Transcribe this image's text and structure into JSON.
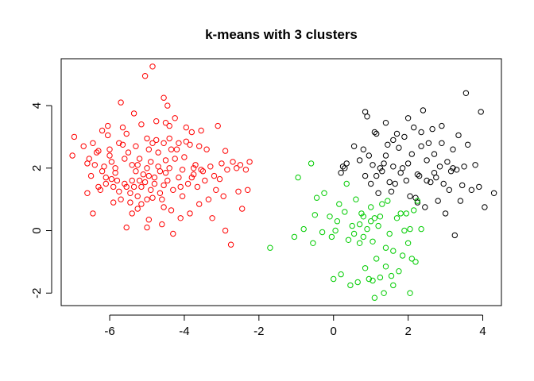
{
  "chart_data": {
    "type": "scatter",
    "title": "k-means with 3 clusters",
    "xlabel": "",
    "ylabel": "",
    "xlim": [
      -7.3,
      4.5
    ],
    "ylim": [
      -2.4,
      5.5
    ],
    "xticks": [
      -6,
      -4,
      -2,
      0,
      2,
      4
    ],
    "yticks": [
      -2,
      0,
      2,
      4
    ],
    "grid": false,
    "legend": "none",
    "marker": "open-circle",
    "series": [
      {
        "color": "#ff0000",
        "points": [
          [
            -7.0,
            2.4
          ],
          [
            -6.95,
            3.0
          ],
          [
            -6.7,
            2.7
          ],
          [
            -6.6,
            1.2
          ],
          [
            -6.55,
            2.3
          ],
          [
            -6.5,
            1.75
          ],
          [
            -6.45,
            0.55
          ],
          [
            -6.45,
            2.8
          ],
          [
            -6.35,
            2.5
          ],
          [
            -6.3,
            1.4
          ],
          [
            -6.25,
            1.3
          ],
          [
            -6.2,
            3.2
          ],
          [
            -6.2,
            1.9
          ],
          [
            -6.15,
            2.05
          ],
          [
            -6.1,
            1.7
          ],
          [
            -6.1,
            1.5
          ],
          [
            -6.05,
            3.05
          ],
          [
            -6.0,
            2.6
          ],
          [
            -6.0,
            2.4
          ],
          [
            -5.95,
            2.2
          ],
          [
            -5.9,
            1.4
          ],
          [
            -5.9,
            0.9
          ],
          [
            -5.85,
            2.0
          ],
          [
            -5.8,
            1.6
          ],
          [
            -5.75,
            2.8
          ],
          [
            -5.75,
            1.25
          ],
          [
            -5.7,
            4.1
          ],
          [
            -5.7,
            1.0
          ],
          [
            -5.65,
            3.3
          ],
          [
            -5.6,
            2.3
          ],
          [
            -5.6,
            1.5
          ],
          [
            -5.55,
            1.4
          ],
          [
            -5.5,
            2.5
          ],
          [
            -5.45,
            0.9
          ],
          [
            -5.4,
            2.1
          ],
          [
            -5.4,
            1.6
          ],
          [
            -5.35,
            1.4
          ],
          [
            -5.3,
            2.7
          ],
          [
            -5.3,
            1.9
          ],
          [
            -5.25,
            1.1
          ],
          [
            -5.25,
            0.7
          ],
          [
            -5.2,
            1.6
          ],
          [
            -5.2,
            2.3
          ],
          [
            -5.15,
            1.4
          ],
          [
            -5.15,
            0.85
          ],
          [
            -5.1,
            1.8
          ],
          [
            -5.05,
            4.95
          ],
          [
            -5.05,
            1.55
          ],
          [
            -5.0,
            2.95
          ],
          [
            -5.0,
            2.0
          ],
          [
            -5.0,
            0.1
          ],
          [
            -5.0,
            1.0
          ],
          [
            -4.95,
            0.35
          ],
          [
            -4.95,
            1.75
          ],
          [
            -4.9,
            2.2
          ],
          [
            -4.9,
            1.3
          ],
          [
            -4.85,
            2.8
          ],
          [
            -4.8,
            1.7
          ],
          [
            -4.8,
            1.5
          ],
          [
            -4.75,
            3.5
          ],
          [
            -4.75,
            2.9
          ],
          [
            -4.7,
            2.5
          ],
          [
            -4.7,
            2.05
          ],
          [
            -4.65,
            1.9
          ],
          [
            -4.6,
            0.2
          ],
          [
            -4.6,
            1.0
          ],
          [
            -4.55,
            2.8
          ],
          [
            -4.55,
            1.45
          ],
          [
            -4.5,
            3.45
          ],
          [
            -4.5,
            2.25
          ],
          [
            -4.5,
            1.85
          ],
          [
            -4.45,
            1.6
          ],
          [
            -4.4,
            3.35
          ],
          [
            -4.4,
            2.95
          ],
          [
            -4.4,
            2.0
          ],
          [
            -4.35,
            0.65
          ],
          [
            -4.3,
            1.3
          ],
          [
            -4.3,
            -0.1
          ],
          [
            -4.25,
            3.6
          ],
          [
            -4.2,
            2.6
          ],
          [
            -4.15,
            1.7
          ],
          [
            -4.1,
            0.4
          ],
          [
            -4.05,
            1.95
          ],
          [
            -4.0,
            2.35
          ],
          [
            -3.95,
            2.85
          ],
          [
            -3.9,
            1.5
          ],
          [
            -3.85,
            2.75
          ],
          [
            -3.85,
            0.55
          ],
          [
            -3.8,
            1.7
          ],
          [
            -3.8,
            3.15
          ],
          [
            -3.75,
            1.8
          ],
          [
            -3.7,
            2.1
          ],
          [
            -3.65,
            1.4
          ],
          [
            -3.6,
            0.85
          ],
          [
            -3.6,
            2.7
          ],
          [
            -3.55,
            3.2
          ],
          [
            -3.5,
            1.9
          ],
          [
            -3.45,
            1.6
          ],
          [
            -3.4,
            2.6
          ],
          [
            -3.35,
            1.0
          ],
          [
            -3.3,
            2.05
          ],
          [
            -3.25,
            0.4
          ],
          [
            -3.2,
            1.75
          ],
          [
            -3.15,
            1.3
          ],
          [
            -3.1,
            3.35
          ],
          [
            -3.05,
            1.65
          ],
          [
            -3.0,
            2.15
          ],
          [
            -2.95,
            1.1
          ],
          [
            -2.9,
            2.55
          ],
          [
            -2.9,
            0.0
          ],
          [
            -2.85,
            1.95
          ],
          [
            -2.75,
            -0.45
          ],
          [
            -2.7,
            2.2
          ],
          [
            -2.6,
            2.0
          ],
          [
            -2.55,
            1.25
          ],
          [
            -2.5,
            2.1
          ],
          [
            -2.45,
            0.7
          ],
          [
            -2.35,
            1.95
          ],
          [
            -2.3,
            1.3
          ],
          [
            -2.25,
            2.2
          ],
          [
            -4.85,
            5.25
          ],
          [
            -4.55,
            4.25
          ],
          [
            -4.45,
            4.0
          ],
          [
            -5.15,
            3.4
          ],
          [
            -5.35,
            3.75
          ],
          [
            -6.6,
            2.15
          ],
          [
            -6.05,
            3.35
          ],
          [
            -5.55,
            3.1
          ],
          [
            -4.25,
            2.3
          ],
          [
            -4.95,
            2.6
          ],
          [
            -5.65,
            2.75
          ],
          [
            -6.3,
            2.55
          ],
          [
            -5.85,
            1.85
          ],
          [
            -5.45,
            1.2
          ],
          [
            -4.65,
            1.2
          ],
          [
            -4.05,
            1.1
          ],
          [
            -3.75,
            2.0
          ],
          [
            -4.35,
            2.6
          ],
          [
            -5.95,
            1.65
          ],
          [
            -5.25,
            2.1
          ],
          [
            -6.4,
            2.1
          ],
          [
            -4.15,
            2.8
          ],
          [
            -4.55,
            0.75
          ],
          [
            -3.95,
            3.3
          ],
          [
            -5.4,
            0.55
          ],
          [
            -5.55,
            0.1
          ],
          [
            -4.85,
            1.05
          ],
          [
            -4.1,
            1.4
          ],
          [
            -3.55,
            1.95
          ]
        ]
      },
      {
        "color": "#000000",
        "points": [
          [
            0.2,
            1.85
          ],
          [
            0.25,
            2.05
          ],
          [
            0.3,
            2.0
          ],
          [
            0.35,
            2.15
          ],
          [
            0.55,
            2.7
          ],
          [
            0.7,
            2.25
          ],
          [
            0.8,
            2.6
          ],
          [
            0.85,
            1.75
          ],
          [
            0.85,
            3.8
          ],
          [
            0.9,
            3.65
          ],
          [
            0.95,
            2.4
          ],
          [
            1.0,
            1.5
          ],
          [
            1.05,
            2.1
          ],
          [
            1.1,
            3.15
          ],
          [
            1.15,
            3.1
          ],
          [
            1.2,
            1.2
          ],
          [
            1.25,
            2.0
          ],
          [
            1.3,
            1.9
          ],
          [
            1.35,
            2.15
          ],
          [
            1.4,
            3.45
          ],
          [
            1.45,
            2.75
          ],
          [
            1.5,
            1.55
          ],
          [
            1.55,
            1.25
          ],
          [
            1.6,
            2.05
          ],
          [
            1.65,
            1.5
          ],
          [
            1.7,
            3.1
          ],
          [
            1.75,
            2.65
          ],
          [
            1.8,
            1.85
          ],
          [
            1.85,
            2.0
          ],
          [
            1.9,
            3.0
          ],
          [
            1.95,
            1.6
          ],
          [
            2.0,
            2.15
          ],
          [
            2.05,
            1.1
          ],
          [
            2.1,
            2.45
          ],
          [
            2.15,
            3.3
          ],
          [
            2.2,
            1.05
          ],
          [
            2.25,
            0.9
          ],
          [
            2.3,
            1.75
          ],
          [
            2.35,
            3.15
          ],
          [
            2.35,
            2.7
          ],
          [
            2.4,
            3.85
          ],
          [
            2.45,
            0.75
          ],
          [
            2.5,
            1.6
          ],
          [
            2.5,
            2.25
          ],
          [
            2.55,
            2.8
          ],
          [
            2.6,
            1.55
          ],
          [
            2.65,
            3.25
          ],
          [
            2.7,
            2.45
          ],
          [
            2.75,
            1.7
          ],
          [
            2.8,
            0.95
          ],
          [
            2.85,
            2.05
          ],
          [
            2.9,
            3.35
          ],
          [
            2.95,
            1.5
          ],
          [
            3.0,
            0.55
          ],
          [
            3.05,
            2.2
          ],
          [
            3.1,
            1.3
          ],
          [
            3.15,
            1.9
          ],
          [
            3.2,
            2.6
          ],
          [
            3.25,
            -0.15
          ],
          [
            3.3,
            1.95
          ],
          [
            3.35,
            3.05
          ],
          [
            3.4,
            0.95
          ],
          [
            3.45,
            1.45
          ],
          [
            3.5,
            2.05
          ],
          [
            3.55,
            4.4
          ],
          [
            3.6,
            2.75
          ],
          [
            3.7,
            1.3
          ],
          [
            3.8,
            2.1
          ],
          [
            3.9,
            1.4
          ],
          [
            3.95,
            3.8
          ],
          [
            4.05,
            0.75
          ],
          [
            4.3,
            1.2
          ],
          [
            1.15,
            1.75
          ],
          [
            2.0,
            3.6
          ],
          [
            2.9,
            2.8
          ],
          [
            1.6,
            2.9
          ],
          [
            2.25,
            1.8
          ],
          [
            3.2,
            2.0
          ],
          [
            1.4,
            2.4
          ],
          [
            2.7,
            1.85
          ]
        ]
      },
      {
        "color": "#00cc00",
        "points": [
          [
            -1.7,
            -0.55
          ],
          [
            -1.05,
            -0.2
          ],
          [
            -0.95,
            1.7
          ],
          [
            -0.8,
            0.05
          ],
          [
            -0.6,
            2.15
          ],
          [
            -0.55,
            -0.4
          ],
          [
            -0.5,
            0.5
          ],
          [
            -0.45,
            1.05
          ],
          [
            -0.3,
            -0.05
          ],
          [
            -0.25,
            1.2
          ],
          [
            -0.1,
            0.45
          ],
          [
            -0.05,
            -0.2
          ],
          [
            0.0,
            -1.55
          ],
          [
            0.05,
            0.0
          ],
          [
            0.1,
            0.3
          ],
          [
            0.15,
            0.85
          ],
          [
            0.2,
            -1.4
          ],
          [
            0.3,
            0.6
          ],
          [
            0.35,
            1.5
          ],
          [
            0.45,
            -1.75
          ],
          [
            0.5,
            0.15
          ],
          [
            0.55,
            -0.1
          ],
          [
            0.6,
            1.0
          ],
          [
            0.65,
            -1.65
          ],
          [
            0.7,
            -0.4
          ],
          [
            0.75,
            0.55
          ],
          [
            0.8,
            -0.2
          ],
          [
            0.85,
            -1.2
          ],
          [
            0.9,
            0.05
          ],
          [
            0.95,
            -1.55
          ],
          [
            1.0,
            0.3
          ],
          [
            1.05,
            -0.35
          ],
          [
            1.05,
            -1.6
          ],
          [
            1.1,
            0.4
          ],
          [
            1.15,
            -0.9
          ],
          [
            1.2,
            0.15
          ],
          [
            1.25,
            -1.5
          ],
          [
            1.3,
            0.85
          ],
          [
            1.35,
            -2.0
          ],
          [
            1.4,
            -0.55
          ],
          [
            1.45,
            0.95
          ],
          [
            1.5,
            -0.1
          ],
          [
            1.55,
            -1.45
          ],
          [
            1.6,
            -0.65
          ],
          [
            1.7,
            0.4
          ],
          [
            1.75,
            -1.3
          ],
          [
            1.8,
            0.55
          ],
          [
            1.85,
            -0.8
          ],
          [
            1.9,
            0.0
          ],
          [
            2.0,
            -0.4
          ],
          [
            2.05,
            0.05
          ],
          [
            2.1,
            -0.9
          ],
          [
            2.15,
            0.65
          ],
          [
            2.2,
            -1.0
          ],
          [
            2.25,
            0.95
          ],
          [
            2.35,
            0.05
          ],
          [
            1.25,
            0.45
          ],
          [
            1.0,
            0.75
          ],
          [
            0.7,
            0.2
          ],
          [
            0.4,
            -0.3
          ],
          [
            1.1,
            -2.15
          ],
          [
            2.05,
            -2.0
          ],
          [
            1.4,
            -1.15
          ],
          [
            1.95,
            0.55
          ],
          [
            0.8,
            0.45
          ],
          [
            1.6,
            -1.75
          ]
        ]
      }
    ]
  }
}
